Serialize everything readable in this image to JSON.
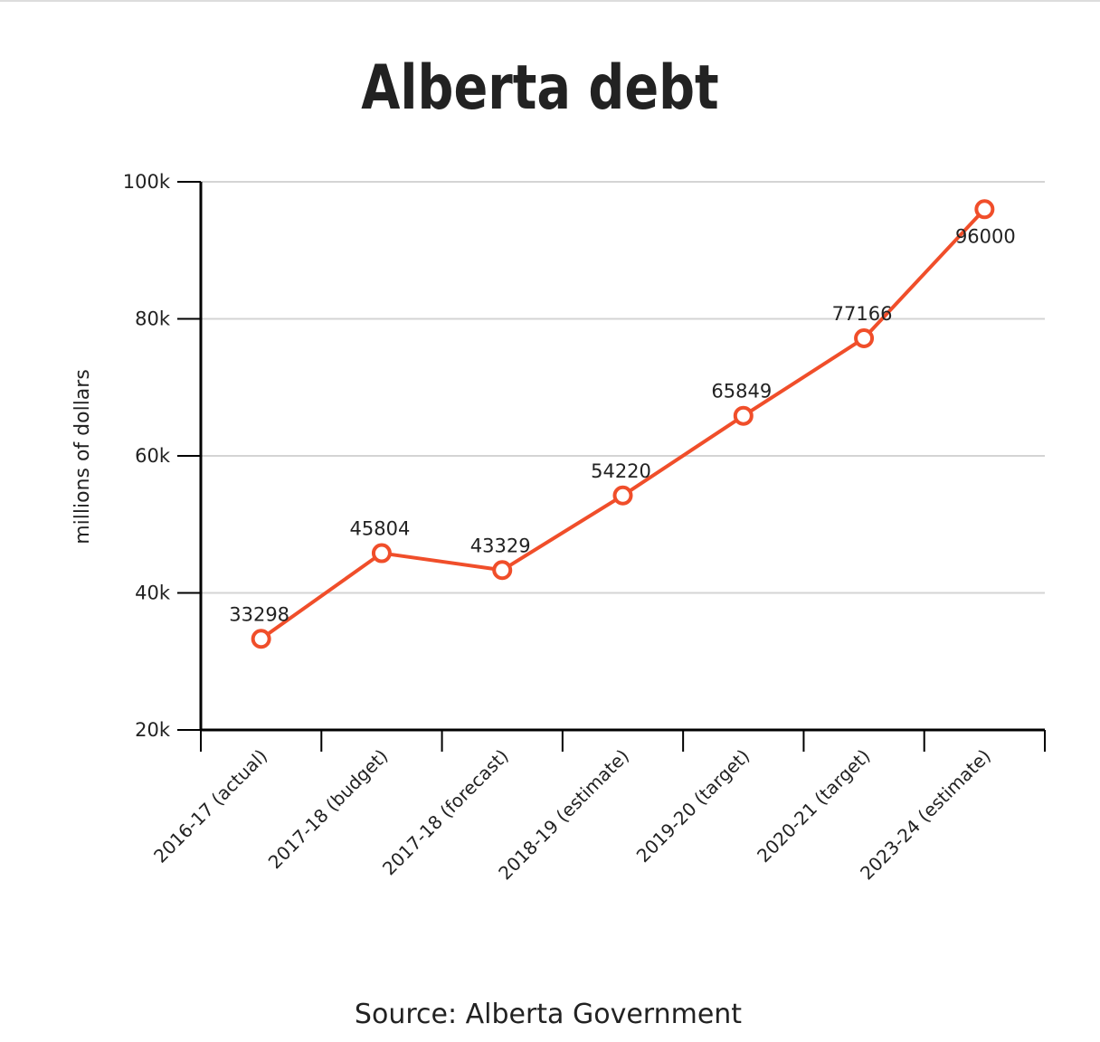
{
  "chart_data": {
    "type": "line",
    "title": "Alberta debt",
    "y_label": "millions of dollars",
    "source": "Source: Alberta Government",
    "categories": [
      "2016-17 (actual)",
      "2017-18 (budget)",
      "2017-18 (forecast)",
      "2018-19 (estimate)",
      "2019-20 (target)",
      "2020-21 (target)",
      "2023-24 (estimate)"
    ],
    "series": [
      {
        "name": "Alberta debt",
        "color": "#f04e2a",
        "values": [
          33298,
          45804,
          43329,
          54220,
          65849,
          77166,
          96000
        ]
      }
    ],
    "ylim": [
      20000,
      100000
    ],
    "yticks": [
      {
        "value": 20000,
        "label": "20k"
      },
      {
        "value": 40000,
        "label": "40k"
      },
      {
        "value": 60000,
        "label": "60k"
      },
      {
        "value": 80000,
        "label": "80k"
      },
      {
        "value": 100000,
        "label": "100k"
      }
    ],
    "grid": true
  }
}
